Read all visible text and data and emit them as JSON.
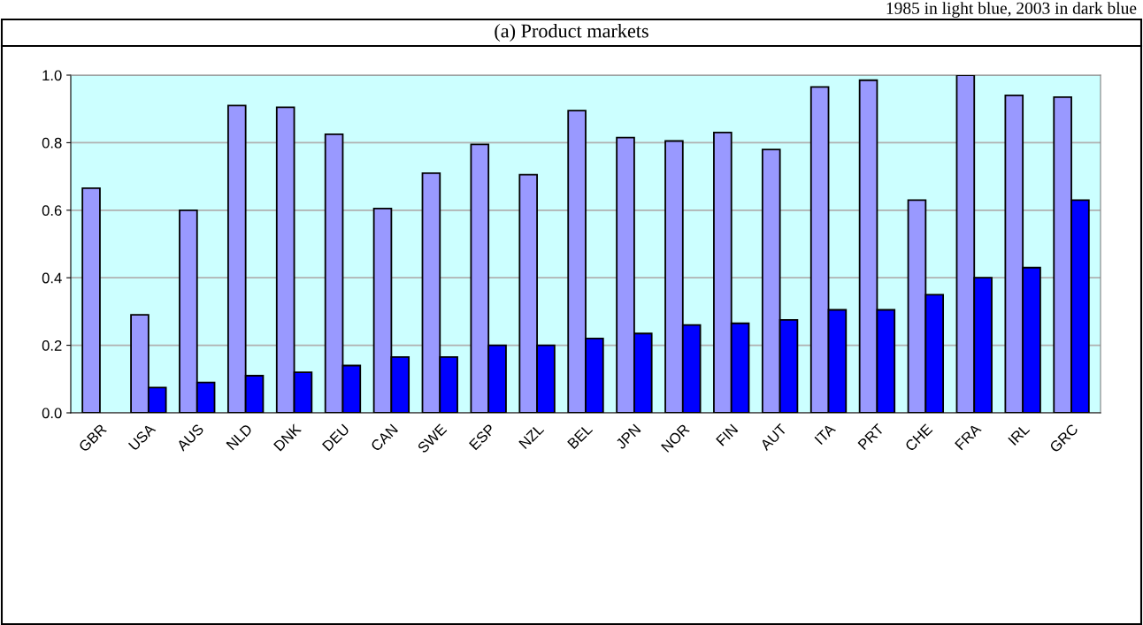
{
  "chart_data": {
    "type": "bar",
    "title": "(a) Product markets",
    "annotations": [
      "1985 in light blue, 2003 in dark blue"
    ],
    "categories": [
      "GBR",
      "USA",
      "AUS",
      "NLD",
      "DNK",
      "DEU",
      "CAN",
      "SWE",
      "ESP",
      "NZL",
      "BEL",
      "JPN",
      "NOR",
      "FIN",
      "AUT",
      "ITA",
      "PRT",
      "CHE",
      "FRA",
      "IRL",
      "GRC"
    ],
    "series": [
      {
        "color": "#9999ff",
        "values": [
          0.665,
          0.29,
          0.6,
          0.91,
          0.905,
          0.825,
          0.605,
          0.71,
          0.795,
          0.705,
          0.895,
          0.815,
          0.805,
          0.83,
          0.78,
          0.965,
          0.985,
          0.63,
          1.0,
          0.94,
          0.935
        ]
      },
      {
        "color": "#0000ff",
        "values": [
          null,
          0.075,
          0.09,
          0.11,
          0.12,
          0.14,
          0.165,
          0.165,
          0.2,
          0.2,
          0.22,
          0.235,
          0.26,
          0.265,
          0.275,
          0.305,
          0.305,
          0.35,
          0.4,
          0.43,
          0.63
        ]
      }
    ],
    "ylim": [
      0,
      1.0
    ],
    "yticks": [
      {
        "value": 0,
        "label": "0.0"
      },
      {
        "value": 0.2,
        "label": "0.2"
      },
      {
        "value": 0.4,
        "label": "0.4"
      },
      {
        "value": 0.6,
        "label": "0.6"
      },
      {
        "value": 0.8,
        "label": "0.8"
      },
      {
        "value": 1.0,
        "label": "1.0"
      }
    ],
    "grid": "y",
    "legend": false
  }
}
